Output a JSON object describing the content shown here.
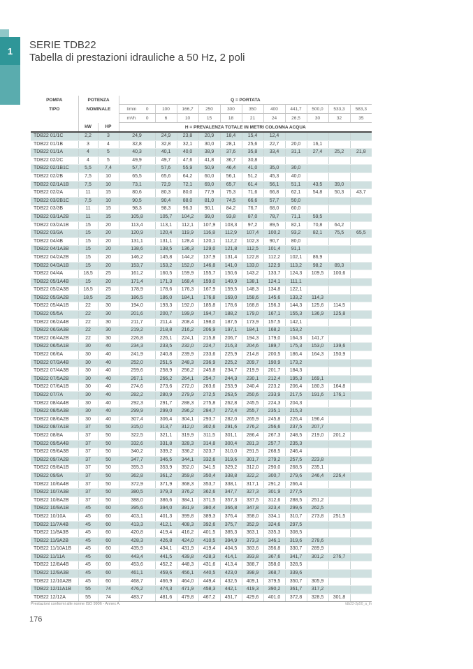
{
  "page": {
    "chapter_number": "1",
    "title": "SERIE TDB22",
    "subtitle": "Tabella di prestazioni idrauliche a 50 Hz, 2 poli",
    "footnote": "Prestazioni conformi alle norme ISO 9906 - Annex A.",
    "table_ref": "tdb22-2p50_a_th",
    "page_number": "176"
  },
  "colors": {
    "accent_teal": "#2f9698",
    "sidebar_teal": "#5aacae",
    "row_stripe": "#cfe0e0"
  },
  "table": {
    "headers": {
      "pompa": "POMPA",
      "tipo": "TIPO",
      "potenza": "POTENZA",
      "nominale": "NOMINALE",
      "kw": "kW",
      "hp": "HP",
      "q_label": "Q = PORTATA",
      "h_label": "H = PREVALENZA TOTALE IN METRI COLONNA ACQUA",
      "lmin_unit": "l/min",
      "m3h_unit": "m³/h",
      "zero": "0",
      "lmin_values": [
        "100",
        "166,7",
        "250",
        "300",
        "350",
        "400",
        "441,7",
        "500,0",
        "533,3",
        "583,3"
      ],
      "m3h_values": [
        "6",
        "10",
        "15",
        "18",
        "21",
        "24",
        "26,5",
        "30",
        "32",
        "35"
      ]
    },
    "rows": [
      [
        "TDB22 01/1C",
        "2,2",
        "3",
        "24,9",
        "24,9",
        "23,8",
        "20,9",
        "18,4",
        "15,4",
        "12,4",
        "",
        "",
        "",
        ""
      ],
      [
        "TDB22 01/1B",
        "3",
        "4",
        "32,8",
        "32,8",
        "32,1",
        "30,0",
        "28,1",
        "25,6",
        "22,7",
        "20,0",
        "16,1",
        "",
        ""
      ],
      [
        "TDB22 01/1A",
        "4",
        "5",
        "40,3",
        "40,1",
        "40,0",
        "38,9",
        "37,6",
        "35,8",
        "33,4",
        "31,1",
        "27,4",
        "25,2",
        "21,8"
      ],
      [
        "TDB22 02/2C",
        "4",
        "5",
        "49,9",
        "49,7",
        "47,6",
        "41,8",
        "36,7",
        "30,8",
        "",
        "",
        "",
        "",
        ""
      ],
      [
        "TDB22 02/1B1C",
        "5,5",
        "7,4",
        "57,7",
        "57,6",
        "55,9",
        "50,9",
        "46,4",
        "41,0",
        "35,0",
        "30,0",
        "",
        "",
        ""
      ],
      [
        "TDB22 02/2B",
        "7,5",
        "10",
        "65,5",
        "65,6",
        "64,2",
        "60,0",
        "56,1",
        "51,2",
        "45,3",
        "40,0",
        "",
        "",
        ""
      ],
      [
        "TDB22 02/1A1B",
        "7,5",
        "10",
        "73,1",
        "72,9",
        "72,1",
        "69,0",
        "65,7",
        "61,4",
        "56,1",
        "51,1",
        "43,5",
        "39,0",
        ""
      ],
      [
        "TDB22 02/2A",
        "11",
        "15",
        "80,6",
        "80,3",
        "80,0",
        "77,9",
        "75,3",
        "71,6",
        "66,8",
        "62,1",
        "54,8",
        "50,3",
        "43,7"
      ],
      [
        "TDB22 03/2B1C",
        "7,5",
        "10",
        "90,5",
        "90,4",
        "88,0",
        "81,0",
        "74,5",
        "66,6",
        "57,7",
        "50,0",
        "",
        "",
        ""
      ],
      [
        "TDB22 03/3B",
        "11",
        "15",
        "98,3",
        "98,3",
        "96,3",
        "90,1",
        "84,2",
        "76,7",
        "68,0",
        "60,0",
        "",
        "",
        ""
      ],
      [
        "TDB22 03/1A2B",
        "11",
        "15",
        "105,8",
        "105,7",
        "104,2",
        "99,0",
        "93,8",
        "87,0",
        "78,7",
        "71,1",
        "59,5",
        "",
        ""
      ],
      [
        "TDB22 03/2A1B",
        "15",
        "20",
        "113,4",
        "113,1",
        "112,1",
        "107,9",
        "103,3",
        "97,2",
        "89,5",
        "82,1",
        "70,8",
        "64,2",
        ""
      ],
      [
        "TDB22 03/3A",
        "15",
        "20",
        "120,9",
        "120,4",
        "119,9",
        "116,8",
        "112,9",
        "107,4",
        "100,2",
        "93,2",
        "82,1",
        "75,5",
        "65,5"
      ],
      [
        "TDB22 04/4B",
        "15",
        "20",
        "131,1",
        "131,1",
        "128,4",
        "120,1",
        "112,2",
        "102,3",
        "90,7",
        "80,0",
        "",
        "",
        ""
      ],
      [
        "TDB22 04/1A3B",
        "15",
        "20",
        "138,6",
        "138,5",
        "136,3",
        "129,0",
        "121,8",
        "112,5",
        "101,4",
        "91,1",
        "",
        "",
        ""
      ],
      [
        "TDB22 04/2A2B",
        "15",
        "20",
        "146,2",
        "145,8",
        "144,2",
        "137,9",
        "131,4",
        "122,8",
        "112,2",
        "102,1",
        "86,9",
        "",
        ""
      ],
      [
        "TDB22 04/3A1B",
        "15",
        "20",
        "153,7",
        "153,2",
        "152,0",
        "146,8",
        "141,0",
        "133,0",
        "122,9",
        "113,2",
        "98,2",
        "89,3",
        ""
      ],
      [
        "TDB22 04/4A",
        "18,5",
        "25",
        "161,2",
        "160,5",
        "159,9",
        "155,7",
        "150,6",
        "143,2",
        "133,7",
        "124,3",
        "109,5",
        "100,6",
        ""
      ],
      [
        "TDB22 05/1A4B",
        "15",
        "20",
        "171,4",
        "171,3",
        "168,4",
        "159,0",
        "149,9",
        "138,1",
        "124,1",
        "111,1",
        "",
        "",
        ""
      ],
      [
        "TDB22 05/2A3B",
        "18,5",
        "25",
        "178,9",
        "178,6",
        "176,3",
        "167,9",
        "159,5",
        "148,3",
        "134,8",
        "122,1",
        "",
        "",
        ""
      ],
      [
        "TDB22 05/3A2B",
        "18,5",
        "25",
        "186,5",
        "186,0",
        "184,1",
        "176,8",
        "169,0",
        "158,6",
        "145,6",
        "133,2",
        "114,3",
        "",
        ""
      ],
      [
        "TDB22 05/4A1B",
        "22",
        "30",
        "194,0",
        "193,3",
        "192,0",
        "185,8",
        "178,6",
        "168,8",
        "156,3",
        "144,3",
        "125,6",
        "114,5",
        ""
      ],
      [
        "TDB22 05/5A",
        "22",
        "30",
        "201,6",
        "200,7",
        "199,9",
        "194,7",
        "188,2",
        "179,0",
        "167,1",
        "155,3",
        "136,9",
        "125,8",
        ""
      ],
      [
        "TDB22 06/2A4B",
        "22",
        "30",
        "211,7",
        "211,4",
        "208,4",
        "198,0",
        "187,5",
        "173,9",
        "157,5",
        "142,1",
        "",
        "",
        ""
      ],
      [
        "TDB22 06/3A3B",
        "22",
        "30",
        "219,2",
        "218,8",
        "216,2",
        "206,9",
        "197,1",
        "184,1",
        "168,2",
        "153,2",
        "",
        "",
        ""
      ],
      [
        "TDB22 06/4A2B",
        "22",
        "30",
        "226,8",
        "226,1",
        "224,1",
        "215,8",
        "206,7",
        "194,3",
        "179,0",
        "164,3",
        "141,7",
        "",
        ""
      ],
      [
        "TDB22 06/5A1B",
        "30",
        "40",
        "234,3",
        "233,5",
        "232,0",
        "224,7",
        "216,3",
        "204,6",
        "189,7",
        "175,3",
        "153,0",
        "139,6",
        ""
      ],
      [
        "TDB22 06/6A",
        "30",
        "40",
        "241,9",
        "240,8",
        "239,9",
        "233,6",
        "225,9",
        "214,8",
        "200,5",
        "186,4",
        "164,3",
        "150,9",
        ""
      ],
      [
        "TDB22 07/3A4B",
        "30",
        "40",
        "252,0",
        "251,5",
        "248,3",
        "236,9",
        "225,2",
        "209,7",
        "190,9",
        "173,2",
        "",
        "",
        ""
      ],
      [
        "TDB22 07/4A3B",
        "30",
        "40",
        "259,6",
        "258,9",
        "256,2",
        "245,8",
        "234,7",
        "219,9",
        "201,7",
        "184,3",
        "",
        "",
        ""
      ],
      [
        "TDB22 07/5A2B",
        "30",
        "40",
        "267,1",
        "266,2",
        "264,1",
        "254,7",
        "244,3",
        "230,1",
        "212,4",
        "195,3",
        "169,1",
        "",
        ""
      ],
      [
        "TDB22 07/6A1B",
        "30",
        "40",
        "274,6",
        "273,6",
        "272,0",
        "263,6",
        "253,9",
        "240,4",
        "223,2",
        "206,4",
        "180,3",
        "164,8",
        ""
      ],
      [
        "TDB22 07/7A",
        "30",
        "40",
        "282,2",
        "280,9",
        "279,9",
        "272,5",
        "263,5",
        "250,6",
        "233,9",
        "217,5",
        "191,6",
        "176,1",
        ""
      ],
      [
        "TDB22 08/4A4B",
        "30",
        "40",
        "292,3",
        "291,7",
        "288,3",
        "275,8",
        "262,8",
        "245,5",
        "224,3",
        "204,3",
        "",
        "",
        ""
      ],
      [
        "TDB22 08/5A3B",
        "30",
        "40",
        "299,9",
        "299,0",
        "296,2",
        "284,7",
        "272,4",
        "255,7",
        "235,1",
        "215,3",
        "",
        "",
        ""
      ],
      [
        "TDB22 08/6A2B",
        "30",
        "40",
        "307,4",
        "306,4",
        "304,1",
        "293,7",
        "282,0",
        "265,9",
        "245,8",
        "226,4",
        "196,4",
        "",
        ""
      ],
      [
        "TDB22 08/7A1B",
        "37",
        "50",
        "315,0",
        "313,7",
        "312,0",
        "302,6",
        "291,6",
        "276,2",
        "256,6",
        "237,5",
        "207,7",
        "",
        ""
      ],
      [
        "TDB22 08/8A",
        "37",
        "50",
        "322,5",
        "321,1",
        "319,9",
        "311,5",
        "301,1",
        "286,4",
        "267,3",
        "248,5",
        "219,0",
        "201,2",
        ""
      ],
      [
        "TDB22 09/5A4B",
        "37",
        "50",
        "332,6",
        "331,8",
        "328,3",
        "314,8",
        "300,4",
        "281,3",
        "257,7",
        "235,3",
        "",
        "",
        ""
      ],
      [
        "TDB22 09/6A3B",
        "37",
        "50",
        "340,2",
        "339,2",
        "336,2",
        "323,7",
        "310,0",
        "291,5",
        "268,5",
        "246,4",
        "",
        "",
        ""
      ],
      [
        "TDB22 09/7A2B",
        "37",
        "50",
        "347,7",
        "346,5",
        "344,1",
        "332,6",
        "319,6",
        "301,7",
        "279,2",
        "257,5",
        "223,8",
        "",
        ""
      ],
      [
        "TDB22 09/8A1B",
        "37",
        "50",
        "355,3",
        "353,9",
        "352,0",
        "341,5",
        "329,2",
        "312,0",
        "290,0",
        "268,5",
        "235,1",
        "",
        ""
      ],
      [
        "TDB22 09/9A",
        "37",
        "50",
        "362,8",
        "361,2",
        "359,8",
        "350,4",
        "338,8",
        "322,2",
        "300,7",
        "279,6",
        "246,4",
        "226,4",
        ""
      ],
      [
        "TDB22 10/6A4B",
        "37",
        "50",
        "372,9",
        "371,9",
        "368,3",
        "353,7",
        "338,1",
        "317,1",
        "291,2",
        "266,4",
        "",
        "",
        ""
      ],
      [
        "TDB22 10/7A3B",
        "37",
        "50",
        "380,5",
        "379,3",
        "376,2",
        "362,6",
        "347,7",
        "327,3",
        "301,9",
        "277,5",
        "",
        "",
        ""
      ],
      [
        "TDB22 10/8A2B",
        "37",
        "50",
        "388,0",
        "386,6",
        "384,1",
        "371,5",
        "357,3",
        "337,5",
        "312,6",
        "288,5",
        "251,2",
        "",
        ""
      ],
      [
        "TDB22 10/9A1B",
        "45",
        "60",
        "395,6",
        "394,0",
        "391,9",
        "380,4",
        "366,8",
        "347,8",
        "323,4",
        "299,6",
        "262,5",
        "",
        ""
      ],
      [
        "TDB22 10/10A",
        "45",
        "60",
        "403,1",
        "401,3",
        "399,8",
        "389,3",
        "376,4",
        "358,0",
        "334,1",
        "310,7",
        "273,8",
        "251,5",
        ""
      ],
      [
        "TDB22 11/7A4B",
        "45",
        "60",
        "413,3",
        "412,1",
        "408,3",
        "392,6",
        "375,7",
        "352,9",
        "324,6",
        "297,5",
        "",
        "",
        ""
      ],
      [
        "TDB22 11/8A3B",
        "45",
        "60",
        "420,8",
        "419,4",
        "416,2",
        "401,5",
        "385,3",
        "363,1",
        "335,3",
        "308,5",
        "",
        "",
        ""
      ],
      [
        "TDB22 11/9A2B",
        "45",
        "60",
        "428,3",
        "426,8",
        "424,0",
        "410,5",
        "394,9",
        "373,3",
        "346,1",
        "319,6",
        "278,6",
        "",
        ""
      ],
      [
        "TDB22 11/10A1B",
        "45",
        "60",
        "435,9",
        "434,1",
        "431,9",
        "419,4",
        "404,5",
        "383,6",
        "356,8",
        "330,7",
        "289,9",
        "",
        ""
      ],
      [
        "TDB22 11/11A",
        "45",
        "60",
        "443,4",
        "441,5",
        "439,8",
        "428,3",
        "414,1",
        "393,8",
        "367,6",
        "341,7",
        "301,2",
        "276,7",
        ""
      ],
      [
        "TDB22 12/8A4B",
        "45",
        "60",
        "453,6",
        "452,2",
        "448,3",
        "431,6",
        "413,4",
        "388,7",
        "358,0",
        "328,5",
        "",
        "",
        ""
      ],
      [
        "TDB22 12/9A3B",
        "45",
        "60",
        "461,1",
        "459,6",
        "456,1",
        "440,5",
        "423,0",
        "398,9",
        "368,7",
        "339,6",
        "",
        "",
        ""
      ],
      [
        "TDB22 12/10A2B",
        "45",
        "60",
        "468,7",
        "466,9",
        "464,0",
        "449,4",
        "432,5",
        "409,1",
        "379,5",
        "350,7",
        "305,9",
        "",
        ""
      ],
      [
        "TDB22 12/11A1B",
        "55",
        "74",
        "476,2",
        "474,3",
        "471,9",
        "458,3",
        "442,1",
        "419,3",
        "390,2",
        "361,7",
        "317,2",
        "",
        ""
      ],
      [
        "TDB22 12/12A",
        "55",
        "74",
        "483,7",
        "481,6",
        "479,8",
        "467,2",
        "451,7",
        "429,6",
        "401,0",
        "372,8",
        "328,5",
        "301,8",
        ""
      ]
    ]
  }
}
